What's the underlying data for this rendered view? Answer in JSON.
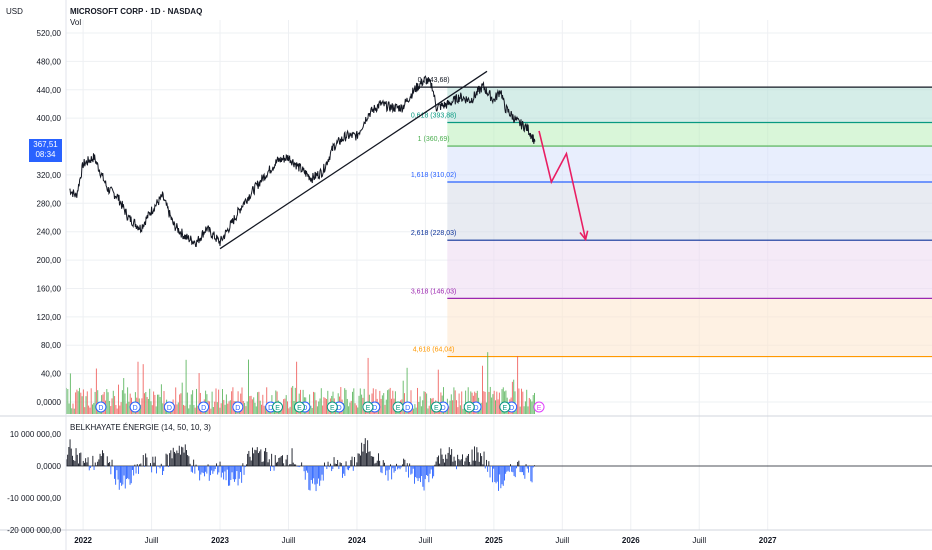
{
  "header": {
    "currency": "USD",
    "symbol": "MICROSOFT CORP · 1D · NASDAQ",
    "volume_label": "Vol"
  },
  "price_badge": {
    "price": "367,51",
    "countdown": "08:34",
    "color": "#2962ff"
  },
  "chart_data": [
    {
      "type": "line",
      "series": [
        {
          "values": [
            [
              2021.9,
              300
            ],
            [
              2021.95,
              290
            ],
            [
              2022.0,
              335
            ],
            [
              2022.08,
              345
            ],
            [
              2022.18,
              300
            ],
            [
              2022.25,
              290
            ],
            [
              2022.33,
              260
            ],
            [
              2022.42,
              245
            ],
            [
              2022.5,
              270
            ],
            [
              2022.58,
              290
            ],
            [
              2022.66,
              250
            ],
            [
              2022.75,
              232
            ],
            [
              2022.83,
              225
            ],
            [
              2022.9,
              245
            ],
            [
              2023.0,
              225
            ],
            [
              2023.08,
              250
            ],
            [
              2023.17,
              280
            ],
            [
              2023.25,
              300
            ],
            [
              2023.33,
              320
            ],
            [
              2023.42,
              340
            ],
            [
              2023.5,
              345
            ],
            [
              2023.58,
              330
            ],
            [
              2023.67,
              315
            ],
            [
              2023.75,
              325
            ],
            [
              2023.83,
              360
            ],
            [
              2023.92,
              375
            ],
            [
              2024.0,
              375
            ],
            [
              2024.08,
              405
            ],
            [
              2024.17,
              420
            ],
            [
              2024.25,
              415
            ],
            [
              2024.33,
              415
            ],
            [
              2024.42,
              440
            ],
            [
              2024.5,
              455
            ],
            [
              2024.55,
              445
            ],
            [
              2024.58,
              415
            ],
            [
              2024.67,
              420
            ],
            [
              2024.75,
              430
            ],
            [
              2024.83,
              425
            ],
            [
              2024.92,
              445
            ],
            [
              2025.0,
              425
            ],
            [
              2025.05,
              440
            ],
            [
              2025.08,
              415
            ],
            [
              2025.17,
              395
            ],
            [
              2025.25,
              385
            ],
            [
              2025.3,
              367
            ]
          ]
        }
      ],
      "trendline": {
        "from": [
          2023.0,
          216
        ],
        "to": [
          2024.95,
          466
        ]
      },
      "projection": [
        [
          2025.33,
          382
        ],
        [
          2025.42,
          310
        ],
        [
          2025.53,
          350
        ],
        [
          2025.67,
          229
        ]
      ],
      "ylim": [
        0,
        540
      ],
      "y_ticks": [
        "0,0000",
        "40,00",
        "80,00",
        "120,00",
        "160,00",
        "200,00",
        "240,00",
        "280,00",
        "320,00",
        "400,00",
        "440,00",
        "480,00",
        "520,00"
      ],
      "x_ticks": [
        "2022",
        "Juill",
        "2023",
        "Juill",
        "2024",
        "Juill",
        "2025",
        "Juill",
        "2026",
        "Juill",
        "2027"
      ],
      "fib_levels": [
        {
          "ratio": "0",
          "price": 443.68,
          "label": "0 (443,68)",
          "line": "#131722",
          "fill": ""
        },
        {
          "ratio": "0.618",
          "price": 393.88,
          "label": "0,618 (393,88)",
          "line": "#089981",
          "fill": "#b2dfd5"
        },
        {
          "ratio": "1",
          "price": 360.69,
          "label": "1 (360,69)",
          "line": "#4caf50",
          "fill": "#b9efb9"
        },
        {
          "ratio": "1.618",
          "price": 310.02,
          "label": "1,618 (310,02)",
          "line": "#2962ff",
          "fill": "#d6e0fb"
        },
        {
          "ratio": "2.618",
          "price": 228.03,
          "label": "2,618 (228,03)",
          "line": "#0c3299",
          "fill": "#d6dbe8"
        },
        {
          "ratio": "3.618",
          "price": 146.03,
          "label": "3,618 (146,03)",
          "line": "#9c27b0",
          "fill": "#ecd9f1"
        },
        {
          "ratio": "4.618",
          "price": 64.04,
          "label": "4,618 (64,04)",
          "line": "#ff9800",
          "fill": "#fde6cc"
        }
      ],
      "volume": {
        "up_color": "#4caf50",
        "down_color": "#ef5350"
      }
    },
    {
      "type": "bar",
      "title": "BELKHAYATE ÉNERGIE (14, 50, 10, 3)",
      "y_ticks": [
        "10 000 000,00",
        "0,0000",
        "-10 000 000,00",
        "-20 000 000,00"
      ],
      "positive_color": "#131722",
      "negative_color": "#2962ff"
    }
  ],
  "event_badges": {
    "dividend": "D",
    "earnings": "E"
  }
}
